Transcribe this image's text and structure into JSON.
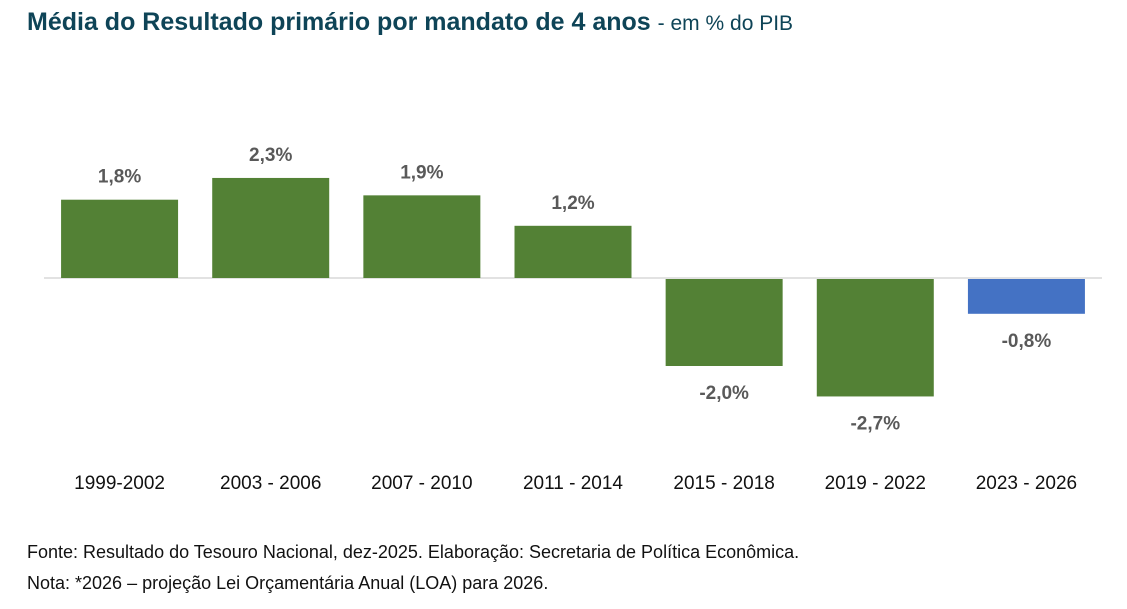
{
  "chart_data": {
    "type": "bar",
    "title": "Média do Resultado primário por mandato de 4 anos",
    "subtitle": "- em % do PIB",
    "xlabel": "",
    "ylabel": "",
    "categories": [
      "1999-2002",
      "2003 - 2006",
      "2007 - 2010",
      "2011 - 2014",
      "2015 - 2018",
      "2019 - 2022",
      "2023 - 2026"
    ],
    "values": [
      1.8,
      2.3,
      1.9,
      1.2,
      -2.0,
      -2.7,
      -0.8
    ],
    "data_labels": [
      "1,8%",
      "2,3%",
      "1,9%",
      "1,2%",
      "-2,0%",
      "-2,7%",
      "-0,8%"
    ],
    "bar_colors": [
      "#538135",
      "#538135",
      "#538135",
      "#538135",
      "#538135",
      "#538135",
      "#4472c4"
    ],
    "ylim": [
      -3.2,
      3.2
    ],
    "grid": false,
    "legend": "none"
  },
  "colors": {
    "title": "#0e4457",
    "bar_primary": "#538135",
    "bar_highlight": "#4472c4",
    "label": "#595959",
    "axis": "#d9d9d9"
  },
  "footer": {
    "source": "Fonte: Resultado do Tesouro Nacional, dez-2025. Elaboração: Secretaria de Política Econômica.",
    "note": "Nota: *2026 – projeção Lei Orçamentária Anual (LOA) para 2026."
  }
}
